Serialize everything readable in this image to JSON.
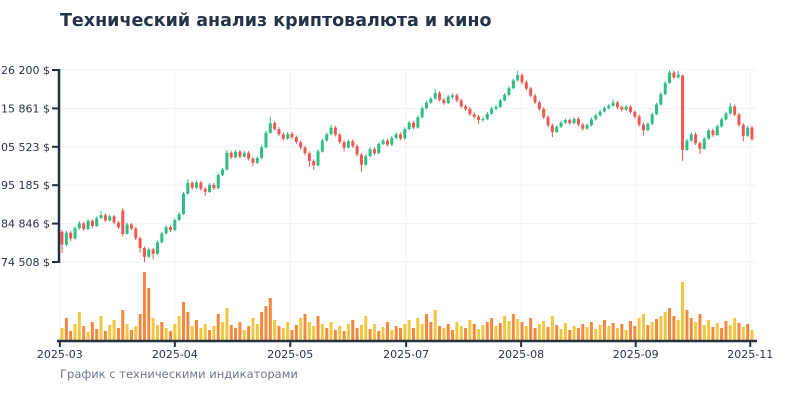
{
  "page": {
    "caption": "График с техническими индикаторами"
  },
  "chart_data": {
    "type": "candlestick",
    "title": "Технический анализ криптовалюта и кино",
    "subtitle": "График с техническими индикаторами",
    "grid": true,
    "legend": "none",
    "ylim": [
      74508,
      126200
    ],
    "y_ticks": [
      {
        "value": 126200,
        "label": "126 200 $"
      },
      {
        "value": 115861,
        "label": "115 861 $"
      },
      {
        "value": 105523,
        "label": "105 523 $"
      },
      {
        "value": 95185,
        "label": "95 185 $"
      },
      {
        "value": 84846,
        "label": "84 846 $"
      },
      {
        "value": 74508,
        "label": "74 508 $"
      }
    ],
    "x_ticks": [
      {
        "label": "2025-03",
        "i": -0.5
      },
      {
        "label": "2025-04",
        "i": 26
      },
      {
        "label": "2025-05",
        "i": 52.6
      },
      {
        "label": "2025-07",
        "i": 79.3
      },
      {
        "label": "2025-08",
        "i": 105.8
      },
      {
        "label": "2025-09",
        "i": 132.2
      },
      {
        "label": "2025-11",
        "i": 158.6
      }
    ],
    "colors": {
      "up": "#2dbd85",
      "down": "#ef5850",
      "volume_yellow": "#f2c73e",
      "volume_orange": "#f6883e",
      "axis": "#253040",
      "grid": "#f0f1f4",
      "title_text": "#263248",
      "caption_text": "#6f7884"
    },
    "candles": [
      [
        82600,
        83200,
        76900,
        79200
      ],
      [
        79200,
        82900,
        78700,
        82400
      ],
      [
        82400,
        82900,
        80100,
        80800
      ],
      [
        80800,
        84100,
        80500,
        83600
      ],
      [
        83600,
        85500,
        83200,
        84900
      ],
      [
        84900,
        85400,
        82900,
        83400
      ],
      [
        83400,
        86100,
        83100,
        85600
      ],
      [
        85600,
        86000,
        83700,
        84200
      ],
      [
        84200,
        86800,
        84000,
        86300
      ],
      [
        86300,
        88300,
        86000,
        87100
      ],
      [
        87100,
        87600,
        85200,
        85700
      ],
      [
        85700,
        87300,
        85400,
        86800
      ],
      [
        86800,
        87200,
        84700,
        85100
      ],
      [
        85100,
        85600,
        83400,
        83900
      ],
      [
        88400,
        89000,
        81400,
        82100
      ],
      [
        82100,
        85100,
        81900,
        84600
      ],
      [
        84600,
        85000,
        83000,
        83500
      ],
      [
        83500,
        84000,
        80400,
        80900
      ],
      [
        80900,
        81300,
        77000,
        78300
      ],
      [
        78300,
        78700,
        74500,
        75900
      ],
      [
        75900,
        78400,
        75600,
        77900
      ],
      [
        77900,
        78300,
        75200,
        76700
      ],
      [
        76700,
        80300,
        76400,
        79800
      ],
      [
        79800,
        82700,
        79500,
        82200
      ],
      [
        82200,
        84400,
        81900,
        83900
      ],
      [
        83900,
        84400,
        82600,
        83100
      ],
      [
        83100,
        86300,
        82800,
        85800
      ],
      [
        85800,
        87900,
        85500,
        87400
      ],
      [
        87400,
        93400,
        87100,
        92900
      ],
      [
        92900,
        96900,
        92600,
        95800
      ],
      [
        95800,
        96300,
        94000,
        94500
      ],
      [
        94500,
        96400,
        94200,
        95900
      ],
      [
        95900,
        96400,
        93700,
        94200
      ],
      [
        94200,
        94700,
        92300,
        93400
      ],
      [
        93400,
        95800,
        93100,
        95300
      ],
      [
        95300,
        95800,
        93900,
        94400
      ],
      [
        94400,
        98400,
        94100,
        97900
      ],
      [
        97900,
        99900,
        97600,
        99400
      ],
      [
        99400,
        104700,
        99100,
        103900
      ],
      [
        103900,
        104400,
        102200,
        102700
      ],
      [
        102700,
        104700,
        102400,
        104200
      ],
      [
        104200,
        104700,
        102400,
        102900
      ],
      [
        102900,
        104400,
        102600,
        103900
      ],
      [
        103900,
        104400,
        101800,
        102300
      ],
      [
        102300,
        102800,
        100300,
        101200
      ],
      [
        101200,
        103000,
        100900,
        102500
      ],
      [
        102500,
        105900,
        102200,
        105400
      ],
      [
        105400,
        109800,
        105100,
        109300
      ],
      [
        109300,
        113500,
        109000,
        111900
      ],
      [
        111900,
        112400,
        109800,
        110300
      ],
      [
        110300,
        110800,
        108400,
        108900
      ],
      [
        108900,
        109400,
        107200,
        107700
      ],
      [
        107700,
        109500,
        107400,
        109000
      ],
      [
        109000,
        109500,
        107600,
        108100
      ],
      [
        108100,
        108600,
        106300,
        106800
      ],
      [
        106800,
        107300,
        104800,
        105300
      ],
      [
        105300,
        105800,
        103300,
        103800
      ],
      [
        103800,
        104300,
        100100,
        101700
      ],
      [
        101700,
        102200,
        99300,
        100500
      ],
      [
        100500,
        104800,
        100200,
        104300
      ],
      [
        104300,
        107700,
        104000,
        107200
      ],
      [
        107200,
        109400,
        106900,
        108900
      ],
      [
        108900,
        111500,
        108600,
        110700
      ],
      [
        110700,
        111200,
        108300,
        108800
      ],
      [
        108800,
        109300,
        106300,
        106800
      ],
      [
        106800,
        107300,
        104200,
        105300
      ],
      [
        105300,
        107500,
        105000,
        107000
      ],
      [
        107000,
        107500,
        105200,
        105700
      ],
      [
        105700,
        106200,
        102900,
        103400
      ],
      [
        103400,
        103900,
        98800,
        100700
      ],
      [
        100700,
        103500,
        100400,
        103000
      ],
      [
        103000,
        105400,
        102700,
        104900
      ],
      [
        104900,
        105400,
        103300,
        103800
      ],
      [
        103800,
        106800,
        103500,
        106300
      ],
      [
        106300,
        107700,
        106000,
        107200
      ],
      [
        107200,
        107700,
        105600,
        106100
      ],
      [
        106100,
        108400,
        105800,
        107900
      ],
      [
        107900,
        109400,
        107600,
        108900
      ],
      [
        108900,
        109400,
        107300,
        107800
      ],
      [
        107800,
        110800,
        107500,
        110300
      ],
      [
        110300,
        112500,
        110000,
        112000
      ],
      [
        112000,
        112500,
        110200,
        110700
      ],
      [
        110700,
        114000,
        110400,
        113500
      ],
      [
        113500,
        116400,
        113200,
        115900
      ],
      [
        115900,
        117900,
        115600,
        117400
      ],
      [
        117400,
        119000,
        117100,
        118500
      ],
      [
        118500,
        121000,
        118200,
        120000
      ],
      [
        120000,
        120500,
        117700,
        118200
      ],
      [
        118200,
        118700,
        116800,
        117300
      ],
      [
        117300,
        119500,
        117000,
        119000
      ],
      [
        119000,
        119900,
        118400,
        119400
      ],
      [
        119400,
        119900,
        117500,
        118000
      ],
      [
        118000,
        118500,
        115900,
        116400
      ],
      [
        116400,
        116900,
        115200,
        115700
      ],
      [
        115700,
        116200,
        113800,
        114300
      ],
      [
        114300,
        114800,
        113100,
        113600
      ],
      [
        113600,
        114100,
        111700,
        112700
      ],
      [
        112700,
        113500,
        112200,
        113000
      ],
      [
        113000,
        114900,
        112700,
        114400
      ],
      [
        114400,
        116300,
        114100,
        115800
      ],
      [
        115800,
        116800,
        115300,
        116300
      ],
      [
        116300,
        118500,
        116000,
        118000
      ],
      [
        118000,
        120000,
        117700,
        119500
      ],
      [
        119500,
        121800,
        119200,
        121300
      ],
      [
        121300,
        123900,
        121000,
        123400
      ],
      [
        123400,
        126000,
        123100,
        124800
      ],
      [
        124800,
        125300,
        122400,
        122900
      ],
      [
        122900,
        123400,
        120700,
        121200
      ],
      [
        121200,
        121700,
        118800,
        119300
      ],
      [
        119300,
        119800,
        117000,
        117500
      ],
      [
        117500,
        118000,
        115200,
        115700
      ],
      [
        115700,
        116200,
        113000,
        113500
      ],
      [
        113500,
        114000,
        110800,
        111300
      ],
      [
        111300,
        111800,
        108100,
        109500
      ],
      [
        109500,
        111400,
        109200,
        110900
      ],
      [
        110900,
        112500,
        110600,
        112000
      ],
      [
        112000,
        113200,
        111700,
        112700
      ],
      [
        112700,
        113200,
        111400,
        111900
      ],
      [
        111900,
        113500,
        111600,
        113000
      ],
      [
        113000,
        113500,
        111000,
        111500
      ],
      [
        111500,
        112000,
        109900,
        110400
      ],
      [
        110400,
        111800,
        110100,
        111300
      ],
      [
        111300,
        113400,
        111000,
        112900
      ],
      [
        112900,
        114500,
        112600,
        114000
      ],
      [
        114000,
        115500,
        113700,
        115000
      ],
      [
        115000,
        116400,
        114700,
        115900
      ],
      [
        115900,
        117100,
        115600,
        116600
      ],
      [
        116600,
        118300,
        116300,
        117400
      ],
      [
        117400,
        117900,
        115700,
        116200
      ],
      [
        116200,
        116700,
        115000,
        115500
      ],
      [
        115500,
        116800,
        115200,
        116300
      ],
      [
        116300,
        116800,
        114400,
        114900
      ],
      [
        114900,
        115400,
        113200,
        113700
      ],
      [
        113700,
        114200,
        111000,
        111500
      ],
      [
        111500,
        112000,
        108500,
        110000
      ],
      [
        110000,
        112200,
        109700,
        111700
      ],
      [
        111700,
        114800,
        111400,
        114300
      ],
      [
        114300,
        117400,
        114000,
        116900
      ],
      [
        116900,
        120200,
        116600,
        119700
      ],
      [
        119700,
        123200,
        119400,
        122700
      ],
      [
        122700,
        126200,
        122400,
        125500
      ],
      [
        125500,
        126000,
        123700,
        124200
      ],
      [
        124200,
        125900,
        123900,
        125000
      ],
      [
        124700,
        125000,
        101700,
        104700
      ],
      [
        104700,
        107700,
        104400,
        107200
      ],
      [
        107200,
        109400,
        106900,
        108900
      ],
      [
        108900,
        109400,
        106000,
        106500
      ],
      [
        106500,
        107000,
        103500,
        105000
      ],
      [
        105000,
        108200,
        104700,
        107700
      ],
      [
        107700,
        110400,
        107400,
        109900
      ],
      [
        109900,
        110400,
        108200,
        108700
      ],
      [
        108700,
        111500,
        108400,
        111000
      ],
      [
        111000,
        113400,
        110700,
        112900
      ],
      [
        112900,
        115000,
        112600,
        114500
      ],
      [
        114500,
        117300,
        114200,
        116400
      ],
      [
        116400,
        116900,
        113700,
        114200
      ],
      [
        114200,
        114700,
        110900,
        111400
      ],
      [
        111400,
        111900,
        107000,
        108500
      ],
      [
        108500,
        111200,
        108200,
        110700
      ],
      [
        110700,
        111200,
        107100,
        107600
      ]
    ],
    "volumes": [
      12,
      22,
      9,
      16,
      28,
      14,
      8,
      18,
      11,
      24,
      9,
      15,
      20,
      12,
      30,
      16,
      10,
      14,
      26,
      68,
      52,
      22,
      15,
      18,
      12,
      9,
      16,
      24,
      38,
      28,
      14,
      20,
      12,
      16,
      10,
      14,
      26,
      18,
      32,
      15,
      12,
      18,
      10,
      14,
      22,
      16,
      28,
      34,
      42,
      20,
      14,
      12,
      18,
      10,
      15,
      22,
      26,
      18,
      14,
      24,
      16,
      12,
      18,
      10,
      14,
      9,
      16,
      20,
      12,
      15,
      24,
      11,
      16,
      9,
      13,
      18,
      10,
      14,
      12,
      16,
      20,
      12,
      22,
      16,
      26,
      18,
      30,
      14,
      12,
      16,
      10,
      18,
      14,
      12,
      20,
      16,
      11,
      15,
      18,
      22,
      14,
      17,
      24,
      19,
      26,
      21,
      18,
      14,
      22,
      12,
      16,
      19,
      13,
      24,
      15,
      11,
      17,
      10,
      14,
      12,
      16,
      13,
      18,
      11,
      15,
      20,
      14,
      17,
      12,
      16,
      10,
      19,
      14,
      22,
      26,
      15,
      18,
      21,
      24,
      28,
      32,
      24,
      20,
      58,
      30,
      22,
      18,
      26,
      15,
      20,
      13,
      17,
      12,
      19,
      15,
      22,
      17,
      13,
      16,
      10
    ],
    "volume_color_pattern": "yooyyoyooyoyyooyoyoooyyoyoyyooyoyyoyoyyoooyoyyoooyoyyooyoyyoyoyoyoyooyyoyoyoyooyyoyyooyoyooyyoyoyyooyoyyoyoyooyyoyoyyoyooyoyyoyoyoyooyyoyoyyooyyooyoyyoyooyyoyoy"
  }
}
